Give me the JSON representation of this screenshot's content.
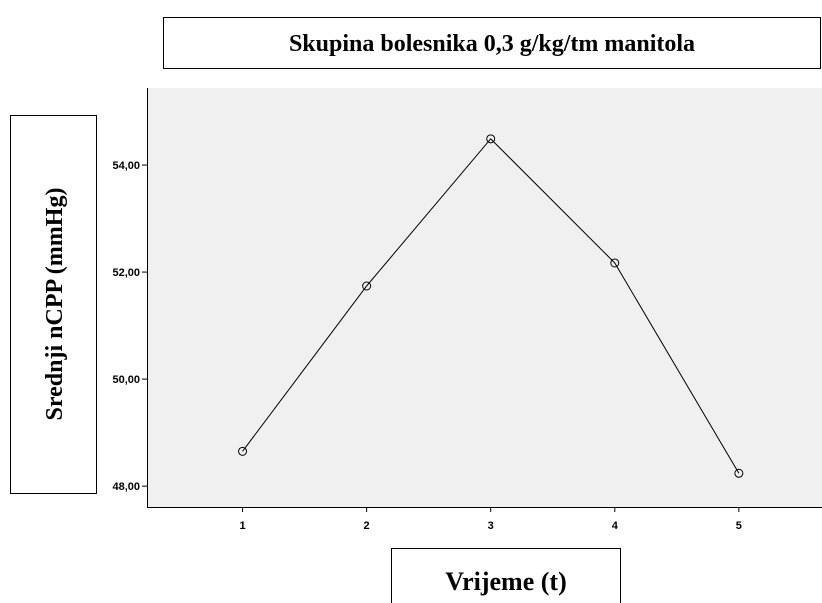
{
  "chart_data": {
    "type": "line",
    "title": "Skupina bolesnika  0,3 g/kg/tm manitola",
    "y_label": "Srednji nCPP (mmHg)",
    "x_label": "Vrijeme (t)",
    "x": [
      1,
      2,
      3,
      4,
      5
    ],
    "series": [
      {
        "color": "#000000",
        "values": [
          48.65,
          51.74,
          54.49,
          52.17,
          48.24
        ]
      }
    ],
    "xlim": [
      0.23,
      5.67
    ],
    "xticks": [
      1,
      2,
      3,
      4,
      5
    ],
    "ylim": [
      47.61,
      55.44
    ],
    "yticks": [
      {
        "value": 48,
        "label": "48,00"
      },
      {
        "value": 50,
        "label": "50,00"
      },
      {
        "value": 52,
        "label": "52,00"
      },
      {
        "value": 54,
        "label": "54,00"
      }
    ],
    "grid": false
  }
}
